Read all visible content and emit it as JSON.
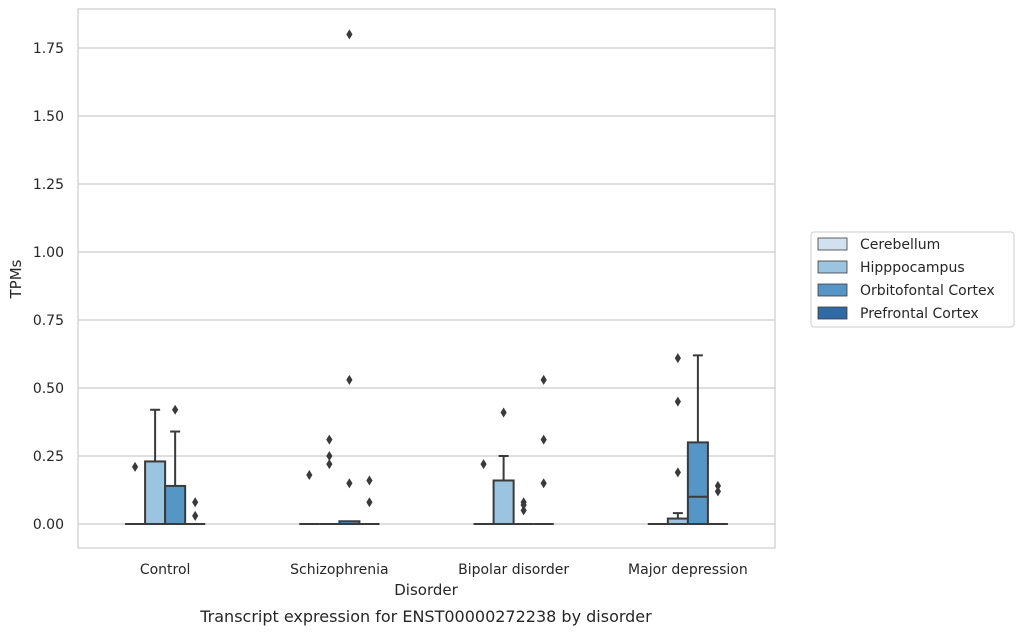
{
  "chart_data": {
    "type": "box",
    "title": "",
    "caption": "Transcript expression for ENST00000272238 by disorder",
    "xlabel": "Disorder",
    "ylabel": "TPMs",
    "ylim": [
      -0.09,
      1.89
    ],
    "yticks": [
      "0.00",
      "0.25",
      "0.50",
      "0.75",
      "1.00",
      "1.25",
      "1.50",
      "1.75"
    ],
    "ytick_values": [
      0,
      0.25,
      0.5,
      0.75,
      1.0,
      1.25,
      1.5,
      1.75
    ],
    "grid": true,
    "legend_position": "right",
    "categories": [
      "Control",
      "Schizophrenia",
      "Bipolar disorder",
      "Major depression"
    ],
    "series": [
      {
        "name": "Cerebellum",
        "color": "#d1e1ef",
        "boxes": [
          {
            "q1": 0,
            "median": 0,
            "q3": 0,
            "whislo": 0,
            "whishi": 0,
            "fliers": [
              0.21
            ]
          },
          {
            "q1": 0,
            "median": 0,
            "q3": 0,
            "whislo": 0,
            "whishi": 0,
            "fliers": [
              0.18
            ]
          },
          {
            "q1": 0,
            "median": 0,
            "q3": 0,
            "whislo": 0,
            "whishi": 0,
            "fliers": [
              0.22
            ]
          },
          {
            "q1": 0,
            "median": 0,
            "q3": 0,
            "whislo": 0,
            "whishi": 0,
            "fliers": []
          }
        ]
      },
      {
        "name": "Hipppocampus",
        "color": "#9ac4df",
        "boxes": [
          {
            "q1": 0,
            "median": 0,
            "q3": 0.23,
            "whislo": 0,
            "whishi": 0.42,
            "fliers": []
          },
          {
            "q1": 0,
            "median": 0,
            "q3": 0,
            "whislo": 0,
            "whishi": 0,
            "fliers": [
              0.31,
              0.25,
              0.22
            ]
          },
          {
            "q1": 0,
            "median": 0,
            "q3": 0.16,
            "whislo": 0,
            "whishi": 0.25,
            "fliers": [
              0.41
            ]
          },
          {
            "q1": 0,
            "median": 0,
            "q3": 0.02,
            "whislo": 0,
            "whishi": 0.04,
            "fliers": [
              0.61,
              0.45,
              0.19
            ]
          }
        ]
      },
      {
        "name": "Orbitofontal Cortex",
        "color": "#5696c6",
        "boxes": [
          {
            "q1": 0,
            "median": 0,
            "q3": 0.14,
            "whislo": 0,
            "whishi": 0.34,
            "fliers": [
              0.42
            ]
          },
          {
            "q1": 0,
            "median": 0,
            "q3": 0.01,
            "whislo": 0,
            "whishi": 0.01,
            "fliers": [
              1.8,
              0.53,
              0.15
            ]
          },
          {
            "q1": 0,
            "median": 0,
            "q3": 0,
            "whislo": 0,
            "whishi": 0,
            "fliers": [
              0.08,
              0.07,
              0.05
            ]
          },
          {
            "q1": 0,
            "median": 0.1,
            "q3": 0.3,
            "whislo": 0,
            "whishi": 0.62,
            "fliers": []
          }
        ]
      },
      {
        "name": "Prefrontal Cortex",
        "color": "#2f6aa6",
        "boxes": [
          {
            "q1": 0,
            "median": 0,
            "q3": 0,
            "whislo": 0,
            "whishi": 0,
            "fliers": [
              0.08,
              0.03
            ]
          },
          {
            "q1": 0,
            "median": 0,
            "q3": 0,
            "whislo": 0,
            "whishi": 0,
            "fliers": [
              0.16,
              0.08
            ]
          },
          {
            "q1": 0,
            "median": 0,
            "q3": 0,
            "whislo": 0,
            "whishi": 0,
            "fliers": [
              0.53,
              0.31,
              0.15
            ]
          },
          {
            "q1": 0,
            "median": 0,
            "q3": 0,
            "whislo": 0,
            "whishi": 0,
            "fliers": [
              0.14,
              0.12
            ]
          }
        ]
      }
    ]
  }
}
